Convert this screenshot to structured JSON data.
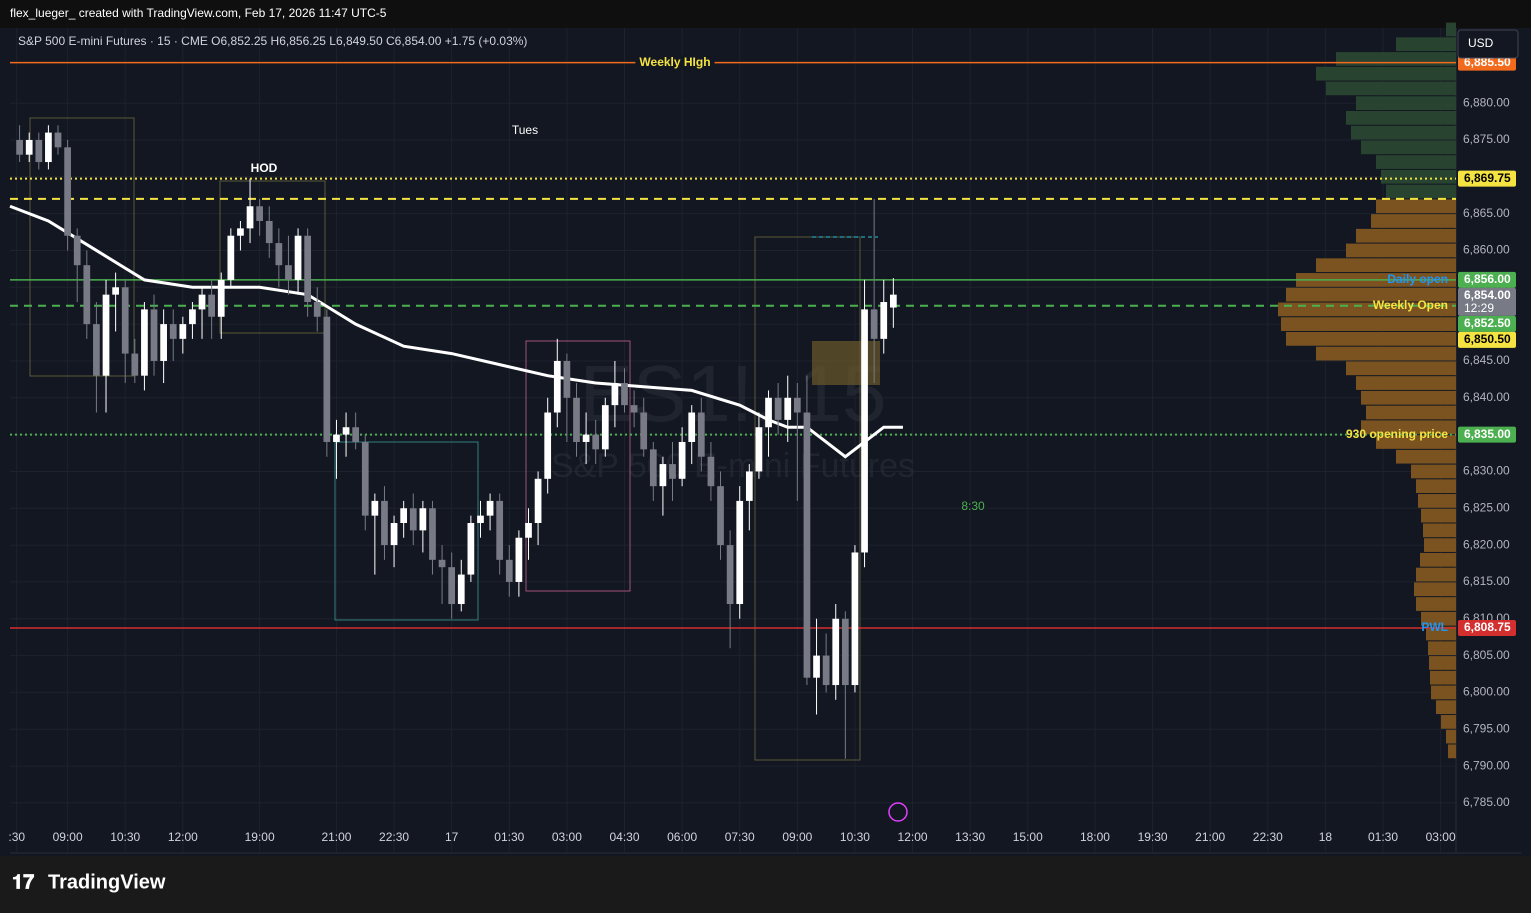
{
  "header": {
    "credit": "flex_lueger_ created with TradingView.com, Feb 17, 2026 11:47 UTC-5",
    "symbol_line": "S&P 500 E-mini Futures · 15 · CME  O6,852.25  H6,856.25  L6,849.50  C6,854.00  +1.75 (+0.03%)",
    "currency": "USD",
    "logo": "TradingView"
  },
  "chart_data": {
    "type": "candlestick",
    "watermark_symbol": "ES1!, 15",
    "watermark_name": "S&P 500 E-mini Futures",
    "xlim": [
      -1,
      149.6
    ],
    "ylim": [
      6778.2,
      6890.2
    ],
    "yticks": [
      {
        "value": 6785,
        "label": "6,785.00"
      },
      {
        "value": 6790,
        "label": "6,790.00"
      },
      {
        "value": 6795,
        "label": "6,795.00"
      },
      {
        "value": 6800,
        "label": "6,800.00"
      },
      {
        "value": 6805,
        "label": "6,805.00"
      },
      {
        "value": 6810,
        "label": "6,810.00"
      },
      {
        "value": 6815,
        "label": "6,815.00"
      },
      {
        "value": 6820,
        "label": "6,820.00"
      },
      {
        "value": 6825,
        "label": "6,825.00"
      },
      {
        "value": 6830,
        "label": "6,830.00"
      },
      {
        "value": 6835,
        "label": "6,835.00"
      },
      {
        "value": 6840,
        "label": "6,840.00"
      },
      {
        "value": 6845,
        "label": "6,845.00"
      },
      {
        "value": 6850,
        "label": "6,850.00"
      },
      {
        "value": 6855,
        "label": "6,855.00"
      },
      {
        "value": 6860,
        "label": "6,860.00"
      },
      {
        "value": 6865,
        "label": "6,865.00"
      },
      {
        "value": 6870,
        "label": "6,870.00"
      },
      {
        "value": 6875,
        "label": "6,875.00"
      },
      {
        "value": 6880,
        "label": "6,880.00"
      }
    ],
    "xticks": [
      {
        "value": -0.3,
        "label": ":30"
      },
      {
        "value": 5,
        "label": "09:00"
      },
      {
        "value": 11,
        "label": "10:30"
      },
      {
        "value": 17,
        "label": "12:00"
      },
      {
        "value": 25,
        "label": "19:00"
      },
      {
        "value": 33,
        "label": "21:00"
      },
      {
        "value": 39,
        "label": "22:30"
      },
      {
        "value": 45,
        "label": "17"
      },
      {
        "value": 51,
        "label": "01:30"
      },
      {
        "value": 57,
        "label": "03:00"
      },
      {
        "value": 63,
        "label": "04:30"
      },
      {
        "value": 69,
        "label": "06:00"
      },
      {
        "value": 75,
        "label": "07:30"
      },
      {
        "value": 81,
        "label": "09:00"
      },
      {
        "value": 87,
        "label": "10:30"
      },
      {
        "value": 93,
        "label": "12:00"
      },
      {
        "value": 99,
        "label": "13:30"
      },
      {
        "value": 105,
        "label": "15:00"
      },
      {
        "value": 112,
        "label": "18:00"
      },
      {
        "value": 118,
        "label": "19:30"
      },
      {
        "value": 124,
        "label": "21:00"
      },
      {
        "value": 130,
        "label": "22:30"
      },
      {
        "value": 136,
        "label": "18"
      },
      {
        "value": 142,
        "label": "01:30"
      },
      {
        "value": 148,
        "label": "03:00"
      }
    ],
    "up_color": "#ffffff",
    "down_color": "#787b86",
    "candles": [
      [
        6875,
        6877,
        6872,
        6873
      ],
      [
        6873,
        6876,
        6872,
        6875
      ],
      [
        6875,
        6876,
        6871,
        6872
      ],
      [
        6872,
        6877,
        6871,
        6876
      ],
      [
        6876,
        6877,
        6873,
        6874
      ],
      [
        6874,
        6875,
        6860,
        6862
      ],
      [
        6862,
        6863,
        6853,
        6858
      ],
      [
        6858,
        6860,
        6848,
        6850
      ],
      [
        6850,
        6853,
        6838,
        6843
      ],
      [
        6843,
        6856,
        6838,
        6854
      ],
      [
        6854,
        6857,
        6849,
        6855
      ],
      [
        6855,
        6856,
        6842,
        6846
      ],
      [
        6846,
        6848,
        6842,
        6843
      ],
      [
        6843,
        6853,
        6841,
        6852
      ],
      [
        6852,
        6854,
        6843,
        6845
      ],
      [
        6845,
        6852,
        6842,
        6850
      ],
      [
        6850,
        6852,
        6845,
        6848
      ],
      [
        6848,
        6851,
        6846,
        6850
      ],
      [
        6850,
        6853,
        6848,
        6852
      ],
      [
        6852,
        6855,
        6848,
        6854
      ],
      [
        6854,
        6856,
        6848,
        6851
      ],
      [
        6851,
        6857,
        6848,
        6856
      ],
      [
        6856,
        6863,
        6855,
        6862
      ],
      [
        6862,
        6864,
        6860,
        6863
      ],
      [
        6863,
        6869.75,
        6861,
        6866
      ],
      [
        6866,
        6867,
        6862,
        6864
      ],
      [
        6864,
        6866,
        6859,
        6861
      ],
      [
        6861,
        6863,
        6855,
        6858
      ],
      [
        6858,
        6862,
        6854,
        6856
      ],
      [
        6856,
        6863,
        6854,
        6862
      ],
      [
        6862,
        6863,
        6851,
        6853
      ],
      [
        6853,
        6855,
        6849,
        6851
      ],
      [
        6851,
        6852,
        6832,
        6834
      ],
      [
        6834,
        6837,
        6829,
        6835
      ],
      [
        6835,
        6838,
        6832,
        6836
      ],
      [
        6836,
        6838,
        6833,
        6834
      ],
      [
        6834,
        6835,
        6822,
        6824
      ],
      [
        6824,
        6827,
        6816,
        6826
      ],
      [
        6826,
        6828,
        6818,
        6820
      ],
      [
        6820,
        6824,
        6817,
        6823
      ],
      [
        6823,
        6826,
        6821,
        6825
      ],
      [
        6825,
        6827,
        6820,
        6822
      ],
      [
        6822,
        6826,
        6819,
        6825
      ],
      [
        6825,
        6826,
        6816,
        6818
      ],
      [
        6818,
        6820,
        6812,
        6817
      ],
      [
        6817,
        6819,
        6810,
        6812
      ],
      [
        6812,
        6818,
        6811,
        6816
      ],
      [
        6816,
        6824,
        6815,
        6823
      ],
      [
        6823,
        6826,
        6821,
        6824
      ],
      [
        6824,
        6827,
        6822,
        6826
      ],
      [
        6826,
        6827,
        6816,
        6818
      ],
      [
        6818,
        6820,
        6813,
        6815
      ],
      [
        6815,
        6822,
        6813,
        6821
      ],
      [
        6821,
        6825,
        6818,
        6823
      ],
      [
        6823,
        6830,
        6820,
        6829
      ],
      [
        6829,
        6840,
        6827,
        6838
      ],
      [
        6838,
        6848,
        6836,
        6845
      ],
      [
        6845,
        6846,
        6834,
        6840
      ],
      [
        6840,
        6842,
        6832,
        6834
      ],
      [
        6834,
        6838,
        6831,
        6835
      ],
      [
        6835,
        6837,
        6831,
        6833
      ],
      [
        6833,
        6840,
        6832,
        6839
      ],
      [
        6839,
        6845,
        6836,
        6842
      ],
      [
        6842,
        6844,
        6838,
        6839
      ],
      [
        6839,
        6841,
        6836,
        6838
      ],
      [
        6838,
        6840,
        6832,
        6833
      ],
      [
        6833,
        6834,
        6826,
        6828
      ],
      [
        6828,
        6832,
        6824,
        6831
      ],
      [
        6831,
        6834,
        6826,
        6829
      ],
      [
        6829,
        6836,
        6828,
        6834
      ],
      [
        6834,
        6839,
        6831,
        6838
      ],
      [
        6838,
        6840,
        6830,
        6832
      ],
      [
        6832,
        6834,
        6826,
        6828
      ],
      [
        6828,
        6830,
        6818,
        6820
      ],
      [
        6820,
        6822,
        6806,
        6812
      ],
      [
        6812,
        6828,
        6810,
        6826
      ],
      [
        6826,
        6831,
        6822,
        6830
      ],
      [
        6830,
        6838,
        6829,
        6836
      ],
      [
        6836,
        6841,
        6832,
        6840
      ],
      [
        6840,
        6842,
        6835,
        6837
      ],
      [
        6837,
        6843,
        6834,
        6840
      ],
      [
        6840,
        6842,
        6826,
        6838
      ],
      [
        6838,
        6843,
        6801,
        6802
      ],
      [
        6802,
        6810,
        6797,
        6805
      ],
      [
        6805,
        6808,
        6800,
        6801
      ],
      [
        6801,
        6812,
        6799,
        6810
      ],
      [
        6810,
        6811,
        6791,
        6801
      ],
      [
        6801,
        6820,
        6800,
        6819
      ],
      [
        6819,
        6856,
        6817,
        6852
      ],
      [
        6852,
        6867,
        6842,
        6848
      ],
      [
        6848,
        6856,
        6846,
        6853
      ],
      [
        6852.25,
        6856.25,
        6849.5,
        6854
      ]
    ],
    "ma": {
      "color": "#ffffff",
      "x": [
        -1,
        3,
        8,
        13,
        18,
        25,
        30,
        35,
        40,
        45,
        50,
        55,
        60,
        65,
        70,
        75,
        78,
        80,
        82,
        84,
        86,
        88,
        90,
        92
      ],
      "values": [
        6866,
        6864,
        6860,
        6856,
        6855,
        6855,
        6854,
        6850,
        6847,
        6846,
        6844.5,
        6843,
        6842,
        6841.5,
        6841,
        6839,
        6837,
        6836,
        6836,
        6834,
        6832,
        6834,
        6836,
        6836
      ]
    },
    "volume_profile": [
      {
        "color": "#28432f",
        "prices": [
          6890,
          6888,
          6886,
          6884,
          6882,
          6880,
          6878,
          6876,
          6874,
          6872,
          6870,
          6868
        ],
        "values": [
          10,
          60,
          120,
          140,
          130,
          100,
          110,
          105,
          95,
          80,
          75,
          70
        ]
      },
      {
        "color": "#7a5320",
        "prices": [
          6866,
          6864,
          6862,
          6860,
          6858,
          6856,
          6854,
          6852,
          6850,
          6848,
          6846,
          6844,
          6842,
          6840,
          6838,
          6836,
          6834,
          6832,
          6830,
          6828,
          6826,
          6824,
          6822,
          6820,
          6818,
          6816,
          6814,
          6812,
          6810,
          6808,
          6806,
          6804,
          6802,
          6800,
          6798,
          6796,
          6794,
          6792
        ],
        "values": [
          80,
          85,
          100,
          110,
          140,
          160,
          170,
          178,
          175,
          170,
          140,
          110,
          100,
          95,
          90,
          95,
          80,
          60,
          45,
          40,
          38,
          35,
          33,
          32,
          36,
          40,
          42,
          40,
          35,
          30,
          28,
          27,
          26,
          25,
          20,
          15,
          10,
          8
        ]
      }
    ],
    "levels": [
      {
        "label": "Weekly HIgh",
        "value": 6885.5,
        "tag": "6,885.50",
        "color": "#f26b1d",
        "tag_color": "#f26b1d",
        "label_color": "#f5e342",
        "style": "solid"
      },
      {
        "value": 6869.75,
        "tag": "6,869.75",
        "color": "#f5e342",
        "tag_color": "#f5e342",
        "style": "dotted"
      },
      {
        "value": 6867,
        "color": "#f5e342",
        "style": "dashed"
      },
      {
        "label": "Daily open",
        "value": 6856,
        "tag": "6,856.00",
        "color": "#4caf50",
        "tag_color": "#4caf50",
        "label_color": "#2196f3",
        "style": "solid"
      },
      {
        "label": "Weekly Open",
        "value": 6852.5,
        "tag": "6,852.50",
        "color": "#4caf50",
        "tag_color": "#4caf50",
        "label_color": "#f5e342",
        "style": "dashed"
      },
      {
        "value": 6850.5,
        "tag": "6,850.50",
        "tag_color": "#f5e342",
        "style": "none"
      },
      {
        "label": "930 opening price",
        "value": 6835,
        "tag": "6,835.00",
        "color": "#4caf50",
        "tag_color": "#4caf50",
        "label_color": "#f5e342",
        "style": "dotted"
      },
      {
        "label": "PWL",
        "value": 6808.75,
        "tag": "6,808.75",
        "color": "#d32f2f",
        "tag_color": "#d32f2f",
        "label_color": "#2196f3",
        "style": "solid"
      }
    ],
    "last": {
      "value": 6854,
      "tag": "6,854.00",
      "countdown": "12:29"
    },
    "annotations": [
      "HOD",
      "Tues",
      "8:30"
    ]
  }
}
